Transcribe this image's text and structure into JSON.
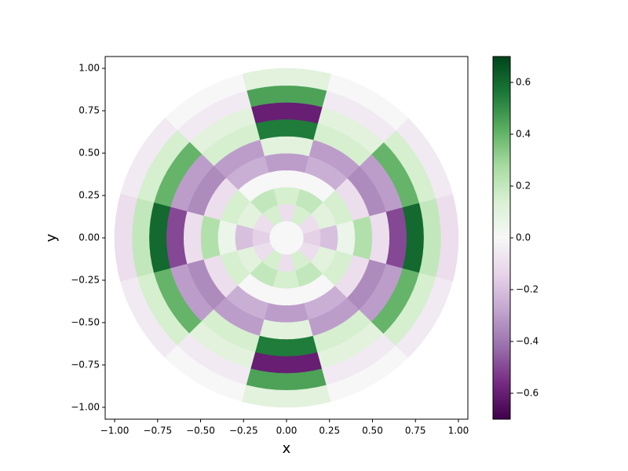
{
  "chart_data": {
    "type": "polar-heatmap",
    "xlabel": "x",
    "ylabel": "y",
    "xlim": [
      -1.055,
      1.055
    ],
    "ylim": [
      -1.07,
      1.07
    ],
    "xticks": [
      {
        "value": -1.0,
        "label": "−1.00"
      },
      {
        "value": -0.75,
        "label": "−0.75"
      },
      {
        "value": -0.5,
        "label": "−0.50"
      },
      {
        "value": -0.25,
        "label": "−0.25"
      },
      {
        "value": 0,
        "label": "0.00"
      },
      {
        "value": 0.25,
        "label": "0.25"
      },
      {
        "value": 0.5,
        "label": "0.50"
      },
      {
        "value": 0.75,
        "label": "0.75"
      },
      {
        "value": 1.0,
        "label": "1.00"
      }
    ],
    "yticks": [
      {
        "value": -1.0,
        "label": "−1.00"
      },
      {
        "value": -0.75,
        "label": "−0.75"
      },
      {
        "value": -0.5,
        "label": "−0.50"
      },
      {
        "value": -0.25,
        "label": "−0.25"
      },
      {
        "value": 0,
        "label": "0.00"
      },
      {
        "value": 0.25,
        "label": "0.25"
      },
      {
        "value": 0.5,
        "label": "0.50"
      },
      {
        "value": 0.75,
        "label": "0.75"
      },
      {
        "value": 1.0,
        "label": "1.00"
      }
    ],
    "r_edges": [
      0,
      0.1,
      0.2,
      0.3,
      0.4,
      0.5,
      0.6,
      0.7,
      0.8,
      0.9,
      1.0
    ],
    "theta_centers": [
      0,
      30,
      60,
      90,
      120,
      150,
      180,
      210,
      240,
      270,
      300,
      330
    ],
    "values": [
      [
        0,
        -0.15,
        -0.2,
        0.05,
        0.25,
        -0.1,
        -0.5,
        0.6,
        0.2,
        -0.1
      ],
      [
        0,
        -0.1,
        0.1,
        0.15,
        -0.1,
        -0.35,
        -0.3,
        0.4,
        0.15,
        -0.05
      ],
      [
        0,
        0.15,
        0.2,
        0,
        -0.25,
        -0.3,
        0.15,
        0.1,
        -0.05,
        0
      ],
      [
        0,
        -0.1,
        0.15,
        0,
        -0.3,
        0.1,
        0.55,
        -0.6,
        0.45,
        0.1
      ],
      [
        0,
        0.15,
        0.2,
        0,
        -0.25,
        -0.3,
        0.15,
        0.1,
        -0.05,
        0
      ],
      [
        0,
        -0.1,
        0.1,
        0.15,
        -0.1,
        -0.35,
        -0.3,
        0.4,
        0.15,
        -0.05
      ],
      [
        0,
        -0.15,
        -0.2,
        0.05,
        0.25,
        -0.1,
        -0.5,
        0.6,
        0.2,
        -0.1
      ],
      [
        0,
        -0.1,
        0.1,
        0.15,
        -0.1,
        -0.35,
        -0.3,
        0.4,
        0.15,
        -0.05
      ],
      [
        0,
        0.15,
        0.2,
        0,
        -0.25,
        -0.3,
        0.15,
        0.1,
        -0.05,
        0
      ],
      [
        0,
        -0.1,
        0.15,
        0,
        -0.3,
        0.1,
        0.55,
        -0.6,
        0.45,
        0.1
      ],
      [
        0,
        0.15,
        0.2,
        0,
        -0.25,
        -0.3,
        0.15,
        0.1,
        -0.05,
        0
      ],
      [
        0,
        -0.1,
        0.1,
        0.15,
        -0.1,
        -0.35,
        -0.3,
        0.4,
        0.15,
        -0.05
      ]
    ],
    "clim": [
      -0.7,
      0.7
    ],
    "colormap": [
      "#40004b",
      "#762a83",
      "#9970ab",
      "#c2a5cf",
      "#e7d4e8",
      "#f7f7f7",
      "#d9f0d3",
      "#a6dba0",
      "#5aae61",
      "#1b7837",
      "#00441b"
    ],
    "cbar_ticks": [
      {
        "value": -0.6,
        "label": "−0.6"
      },
      {
        "value": -0.4,
        "label": "−0.4"
      },
      {
        "value": -0.2,
        "label": "−0.2"
      },
      {
        "value": 0.0,
        "label": "0.0"
      },
      {
        "value": 0.2,
        "label": "0.2"
      },
      {
        "value": 0.4,
        "label": "0.4"
      },
      {
        "value": 0.6,
        "label": "0.6"
      }
    ]
  }
}
